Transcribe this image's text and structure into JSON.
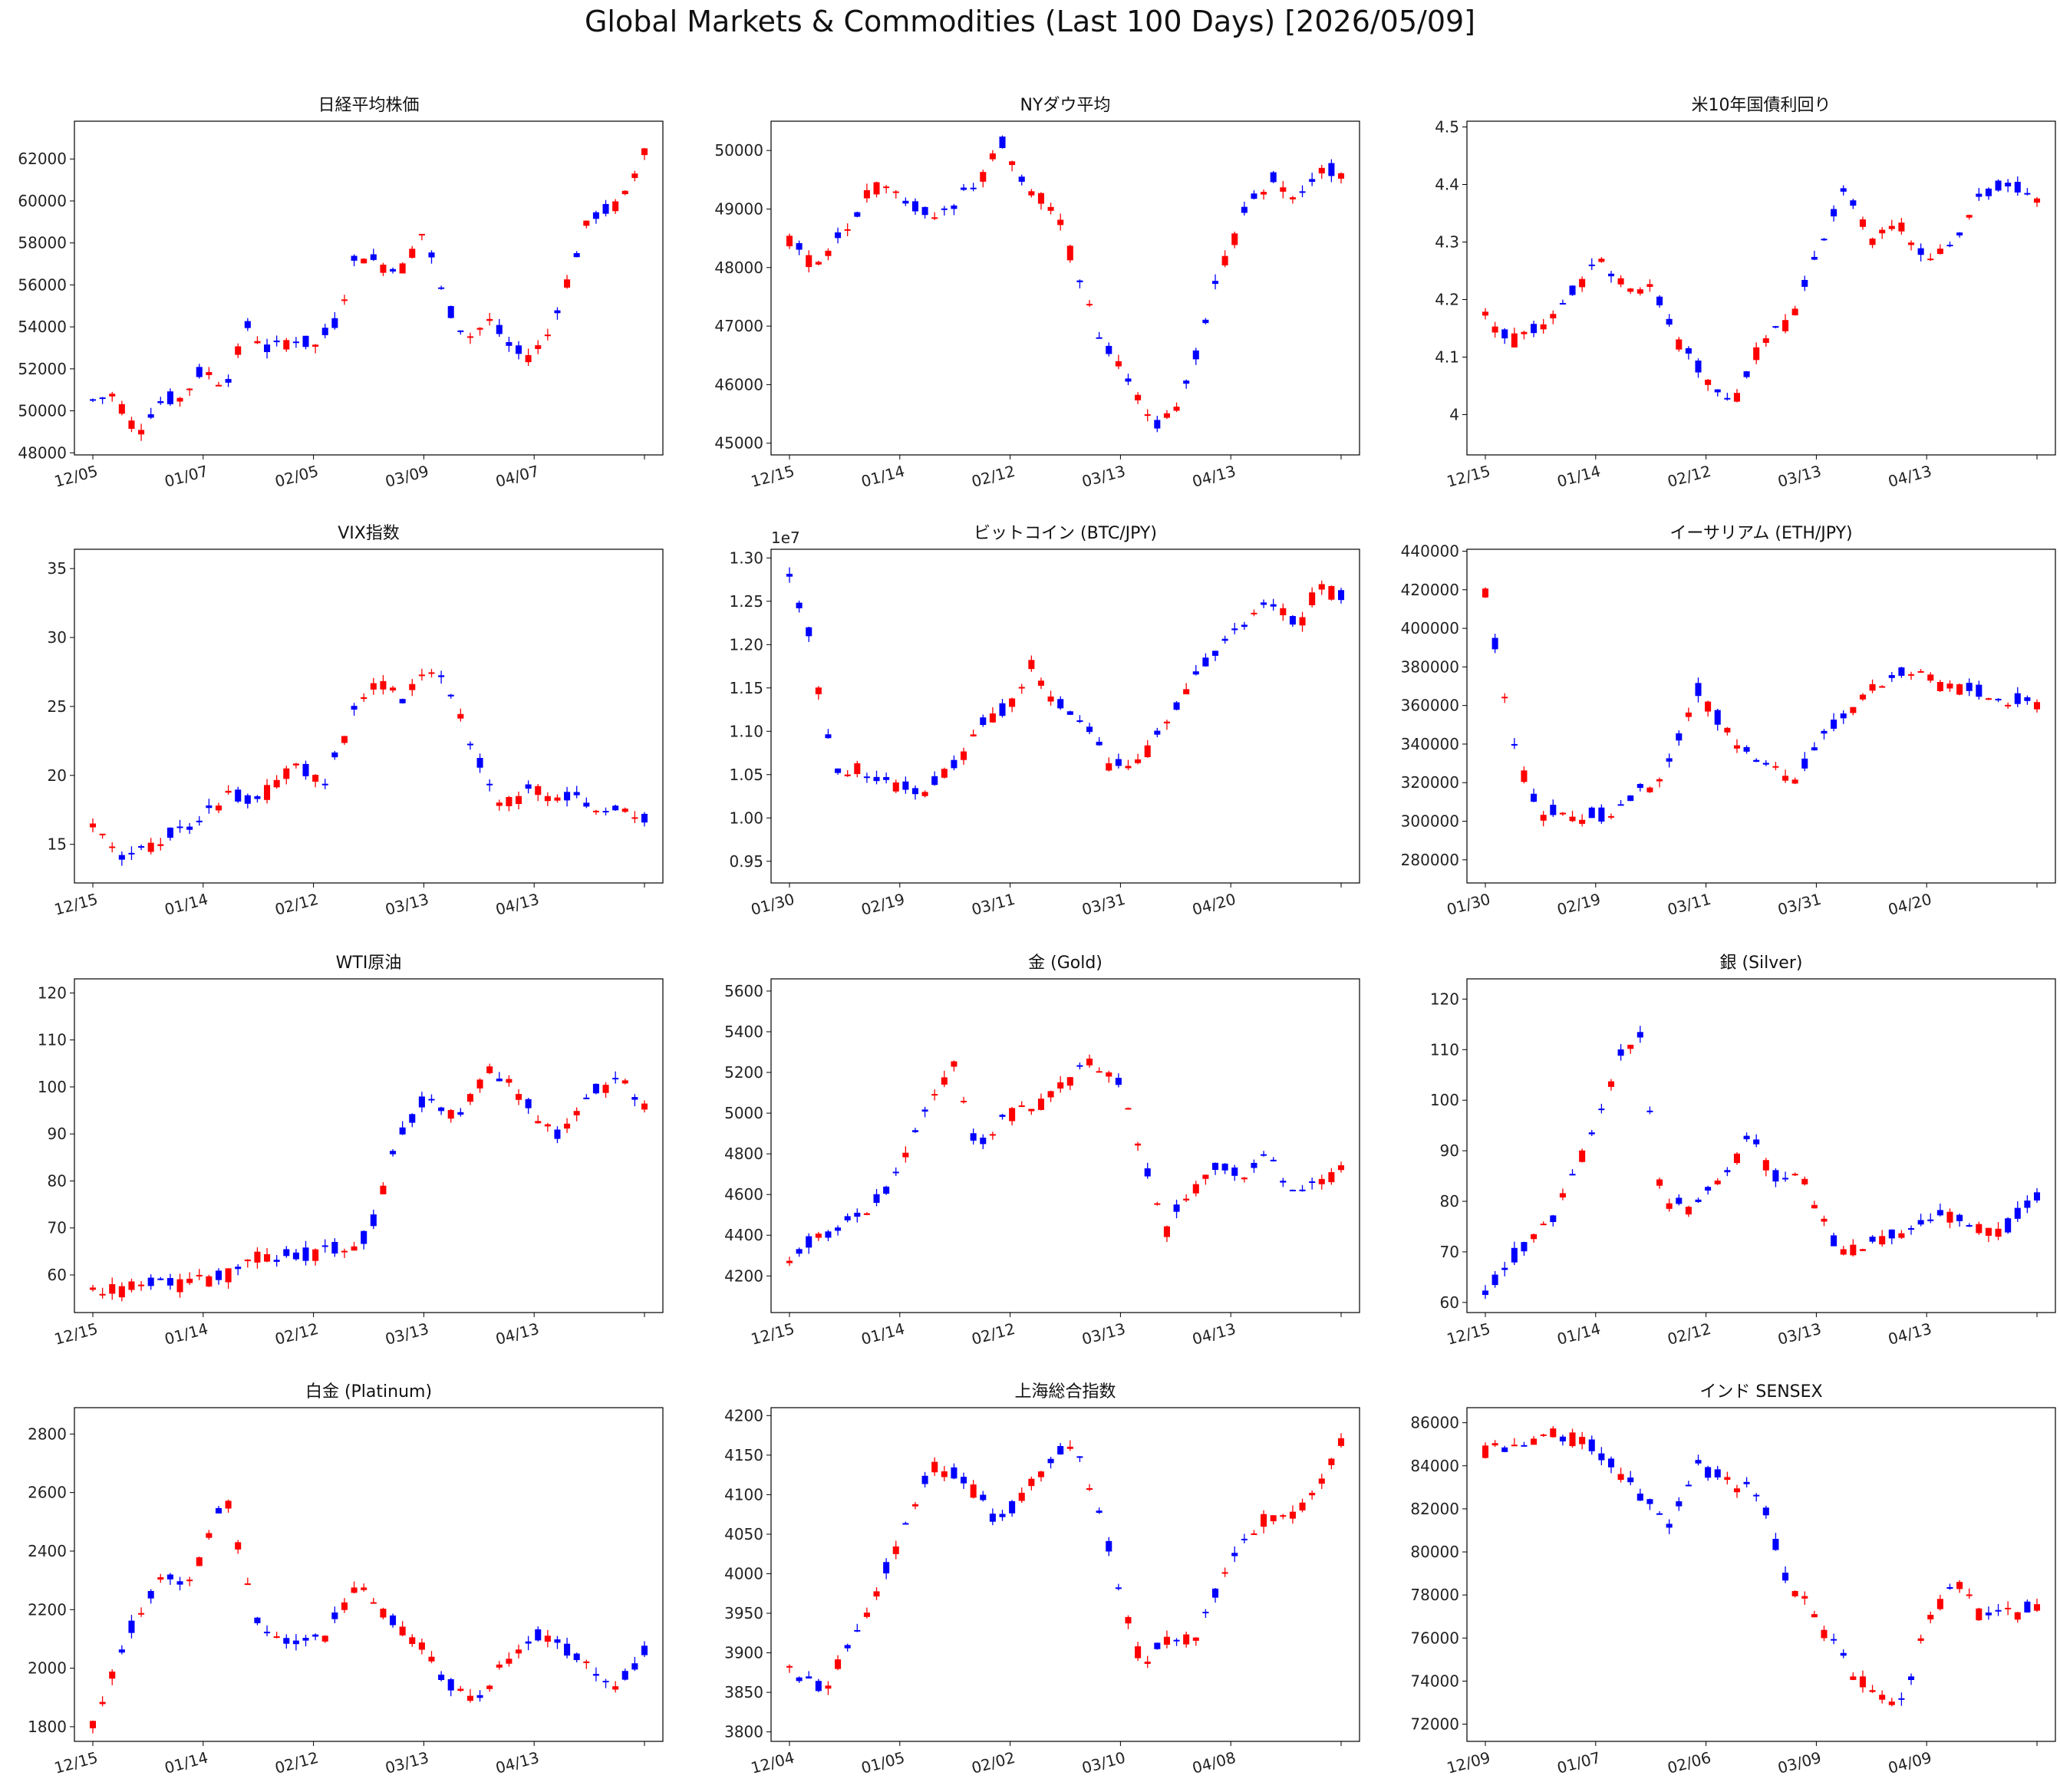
{
  "suptitle": "Global Markets & Commodities (Last 100 Days) [2026/05/09]",
  "colors": {
    "up": "#0000ff",
    "down": "#ff0000",
    "axis": "#000000"
  },
  "chart_data": [
    {
      "type": "candlestick",
      "title": "日経平均株価",
      "xticks": [
        "12/05",
        "01/07",
        "02/05",
        "03/09",
        "04/07",
        ""
      ],
      "yticks": [
        48000,
        50000,
        52000,
        54000,
        56000,
        58000,
        60000,
        62000
      ],
      "ylim": [
        47900,
        63800
      ],
      "shape": [
        [
          0,
          50500
        ],
        [
          0.04,
          50800
        ],
        [
          0.08,
          49000
        ],
        [
          0.12,
          50400
        ],
        [
          0.16,
          50600
        ],
        [
          0.2,
          52000
        ],
        [
          0.24,
          51200
        ],
        [
          0.28,
          54000
        ],
        [
          0.32,
          52800
        ],
        [
          0.36,
          53500
        ],
        [
          0.4,
          53000
        ],
        [
          0.44,
          54200
        ],
        [
          0.48,
          57600
        ],
        [
          0.52,
          57000
        ],
        [
          0.56,
          56800
        ],
        [
          0.6,
          58600
        ],
        [
          0.64,
          55000
        ],
        [
          0.68,
          53500
        ],
        [
          0.72,
          54300
        ],
        [
          0.75,
          53200
        ],
        [
          0.78,
          52500
        ],
        [
          0.82,
          53300
        ],
        [
          0.86,
          56200
        ],
        [
          0.9,
          59200
        ],
        [
          0.94,
          59600
        ],
        [
          0.97,
          60400
        ],
        [
          1,
          62600
        ]
      ]
    },
    {
      "type": "candlestick",
      "title": "NYダウ平均",
      "xticks": [
        "12/15",
        "01/14",
        "02/12",
        "03/13",
        "04/13",
        ""
      ],
      "yticks": [
        45000,
        46000,
        47000,
        48000,
        49000,
        50000
      ],
      "ylim": [
        44800,
        50500
      ],
      "shape": [
        [
          0,
          48500
        ],
        [
          0.05,
          48000
        ],
        [
          0.1,
          48600
        ],
        [
          0.15,
          49400
        ],
        [
          0.2,
          49200
        ],
        [
          0.25,
          48900
        ],
        [
          0.3,
          49100
        ],
        [
          0.35,
          49600
        ],
        [
          0.38,
          50200
        ],
        [
          0.42,
          49500
        ],
        [
          0.48,
          49000
        ],
        [
          0.52,
          48000
        ],
        [
          0.56,
          46800
        ],
        [
          0.62,
          46000
        ],
        [
          0.66,
          45300
        ],
        [
          0.7,
          45600
        ],
        [
          0.74,
          46600
        ],
        [
          0.78,
          48000
        ],
        [
          0.83,
          49000
        ],
        [
          0.88,
          49500
        ],
        [
          0.92,
          49200
        ],
        [
          0.96,
          49700
        ],
        [
          1,
          49600
        ]
      ]
    },
    {
      "type": "candlestick",
      "title": "米10年国債利回り",
      "xticks": [
        "12/15",
        "01/14",
        "02/12",
        "03/13",
        "04/13",
        ""
      ],
      "yticks": [
        4.0,
        4.1,
        4.2,
        4.3,
        4.4,
        4.5
      ],
      "ylim": [
        3.93,
        4.51
      ],
      "shape": [
        [
          0,
          4.17
        ],
        [
          0.05,
          4.13
        ],
        [
          0.1,
          4.15
        ],
        [
          0.15,
          4.2
        ],
        [
          0.2,
          4.27
        ],
        [
          0.25,
          4.23
        ],
        [
          0.3,
          4.22
        ],
        [
          0.35,
          4.13
        ],
        [
          0.4,
          4.06
        ],
        [
          0.45,
          4.02
        ],
        [
          0.5,
          4.13
        ],
        [
          0.55,
          4.16
        ],
        [
          0.6,
          4.28
        ],
        [
          0.65,
          4.38
        ],
        [
          0.7,
          4.31
        ],
        [
          0.75,
          4.33
        ],
        [
          0.8,
          4.26
        ],
        [
          0.85,
          4.3
        ],
        [
          0.9,
          4.38
        ],
        [
          0.95,
          4.4
        ],
        [
          1,
          4.37
        ]
      ]
    },
    {
      "type": "candlestick",
      "title": "VIX指数",
      "xticks": [
        "12/15",
        "01/14",
        "02/12",
        "03/13",
        "04/13",
        ""
      ],
      "yticks": [
        15,
        20,
        25,
        30,
        35
      ],
      "ylim": [
        12.2,
        36.4
      ],
      "shape": [
        [
          0,
          16.8
        ],
        [
          0.06,
          13.8
        ],
        [
          0.12,
          15.2
        ],
        [
          0.18,
          16.5
        ],
        [
          0.24,
          18.5
        ],
        [
          0.3,
          18.2
        ],
        [
          0.36,
          20.8
        ],
        [
          0.42,
          19.5
        ],
        [
          0.48,
          25
        ],
        [
          0.52,
          27
        ],
        [
          0.56,
          25.5
        ],
        [
          0.62,
          28
        ],
        [
          0.66,
          25
        ],
        [
          0.7,
          21
        ],
        [
          0.74,
          18
        ],
        [
          0.8,
          19
        ],
        [
          0.86,
          18.5
        ],
        [
          0.92,
          17.5
        ],
        [
          1,
          17
        ]
      ]
    },
    {
      "type": "candlestick",
      "title": "ビットコイン (BTC/JPY)",
      "yoffset": "1e7",
      "xticks": [
        "01/30",
        "02/19",
        "03/11",
        "03/31",
        "04/20",
        ""
      ],
      "yticks": [
        "0.95",
        "1.00",
        "1.05",
        "1.10",
        "1.15",
        "1.20",
        "1.25",
        "1.30"
      ],
      "ylim": [
        0.925,
        1.31
      ],
      "shape": [
        [
          0,
          1.28
        ],
        [
          0.04,
          1.2
        ],
        [
          0.08,
          1.05
        ],
        [
          0.12,
          1.06
        ],
        [
          0.18,
          1.04
        ],
        [
          0.24,
          1.03
        ],
        [
          0.3,
          1.06
        ],
        [
          0.34,
          1.1
        ],
        [
          0.4,
          1.13
        ],
        [
          0.44,
          1.18
        ],
        [
          0.48,
          1.13
        ],
        [
          0.52,
          1.12
        ],
        [
          0.58,
          1.06
        ],
        [
          0.64,
          1.07
        ],
        [
          0.7,
          1.13
        ],
        [
          0.76,
          1.18
        ],
        [
          0.82,
          1.22
        ],
        [
          0.88,
          1.25
        ],
        [
          0.92,
          1.22
        ],
        [
          0.96,
          1.27
        ],
        [
          1,
          1.255
        ]
      ]
    },
    {
      "type": "candlestick",
      "title": "イーサリアム (ETH/JPY)",
      "xticks": [
        "01/30",
        "02/19",
        "03/11",
        "03/31",
        "04/20",
        ""
      ],
      "yticks": [
        280000,
        300000,
        320000,
        340000,
        360000,
        380000,
        400000,
        420000,
        440000
      ],
      "ylim": [
        268000,
        441000
      ],
      "shape": [
        [
          0,
          420000
        ],
        [
          0.03,
          370000
        ],
        [
          0.06,
          330000
        ],
        [
          0.1,
          305000
        ],
        [
          0.16,
          302000
        ],
        [
          0.22,
          303000
        ],
        [
          0.28,
          315000
        ],
        [
          0.34,
          330000
        ],
        [
          0.38,
          370000
        ],
        [
          0.44,
          345000
        ],
        [
          0.5,
          330000
        ],
        [
          0.56,
          320000
        ],
        [
          0.62,
          345000
        ],
        [
          0.68,
          365000
        ],
        [
          0.72,
          372000
        ],
        [
          0.76,
          378000
        ],
        [
          0.82,
          372000
        ],
        [
          0.88,
          368000
        ],
        [
          0.94,
          362000
        ],
        [
          1,
          362000
        ]
      ]
    },
    {
      "type": "candlestick",
      "title": "WTI原油",
      "xticks": [
        "12/15",
        "01/14",
        "02/12",
        "03/13",
        "04/13",
        ""
      ],
      "yticks": [
        60,
        70,
        80,
        90,
        100,
        110,
        120
      ],
      "ylim": [
        52,
        123
      ],
      "shape": [
        [
          0,
          56.5
        ],
        [
          0.08,
          57.5
        ],
        [
          0.16,
          58
        ],
        [
          0.24,
          60
        ],
        [
          0.3,
          64
        ],
        [
          0.36,
          63.5
        ],
        [
          0.44,
          65.5
        ],
        [
          0.5,
          68
        ],
        [
          0.55,
          88
        ],
        [
          0.6,
          97
        ],
        [
          0.66,
          94
        ],
        [
          0.72,
          104
        ],
        [
          0.78,
          98
        ],
        [
          0.84,
          89
        ],
        [
          0.9,
          98
        ],
        [
          0.95,
          102
        ],
        [
          1,
          96
        ]
      ]
    },
    {
      "type": "candlestick",
      "title": "金 (Gold)",
      "xticks": [
        "12/15",
        "01/14",
        "02/12",
        "03/13",
        "04/13",
        ""
      ],
      "yticks": [
        4200,
        4400,
        4600,
        4800,
        5000,
        5200,
        5400,
        5600
      ],
      "ylim": [
        4020,
        5660
      ],
      "shape": [
        [
          0,
          4300
        ],
        [
          0.06,
          4400
        ],
        [
          0.12,
          4480
        ],
        [
          0.18,
          4620
        ],
        [
          0.24,
          5000
        ],
        [
          0.3,
          5250
        ],
        [
          0.34,
          4800
        ],
        [
          0.4,
          5000
        ],
        [
          0.46,
          5050
        ],
        [
          0.5,
          5150
        ],
        [
          0.54,
          5280
        ],
        [
          0.6,
          5120
        ],
        [
          0.64,
          4800
        ],
        [
          0.68,
          4400
        ],
        [
          0.72,
          4600
        ],
        [
          0.78,
          4750
        ],
        [
          0.82,
          4700
        ],
        [
          0.86,
          4800
        ],
        [
          0.92,
          4600
        ],
        [
          1,
          4720
        ]
      ]
    },
    {
      "type": "candlestick",
      "title": "銀 (Silver)",
      "xticks": [
        "12/15",
        "01/14",
        "02/12",
        "03/13",
        "04/13",
        ""
      ],
      "yticks": [
        60,
        70,
        80,
        90,
        100,
        110,
        120
      ],
      "ylim": [
        58,
        124
      ],
      "shape": [
        [
          0,
          62
        ],
        [
          0.06,
          70
        ],
        [
          0.12,
          76
        ],
        [
          0.18,
          90
        ],
        [
          0.24,
          108
        ],
        [
          0.28,
          113
        ],
        [
          0.32,
          80
        ],
        [
          0.38,
          78
        ],
        [
          0.44,
          86
        ],
        [
          0.48,
          93
        ],
        [
          0.52,
          85
        ],
        [
          0.58,
          84
        ],
        [
          0.64,
          70
        ],
        [
          0.7,
          72
        ],
        [
          0.76,
          74
        ],
        [
          0.82,
          78
        ],
        [
          0.88,
          76
        ],
        [
          0.94,
          74
        ],
        [
          1,
          81
        ]
      ]
    },
    {
      "type": "candlestick",
      "title": "白金 (Platinum)",
      "xticks": [
        "12/15",
        "01/14",
        "02/12",
        "03/13",
        "04/13",
        ""
      ],
      "yticks": [
        1800,
        2000,
        2200,
        2400,
        2600,
        2800
      ],
      "ylim": [
        1750,
        2890
      ],
      "shape": [
        [
          0,
          1820
        ],
        [
          0.06,
          2100
        ],
        [
          0.12,
          2300
        ],
        [
          0.18,
          2300
        ],
        [
          0.24,
          2600
        ],
        [
          0.3,
          2150
        ],
        [
          0.36,
          2060
        ],
        [
          0.42,
          2100
        ],
        [
          0.48,
          2300
        ],
        [
          0.54,
          2160
        ],
        [
          0.6,
          2080
        ],
        [
          0.64,
          1950
        ],
        [
          0.7,
          1900
        ],
        [
          0.76,
          2060
        ],
        [
          0.82,
          2120
        ],
        [
          0.88,
          2030
        ],
        [
          0.94,
          1930
        ],
        [
          1,
          2050
        ]
      ]
    },
    {
      "type": "candlestick",
      "title": "上海総合指数",
      "xticks": [
        "12/04",
        "01/05",
        "02/02",
        "03/10",
        "04/08",
        ""
      ],
      "yticks": [
        3800,
        3850,
        3900,
        3950,
        4000,
        4050,
        4100,
        4150,
        4200
      ],
      "ylim": [
        3788,
        4210
      ],
      "shape": [
        [
          0,
          3880
        ],
        [
          0.06,
          3850
        ],
        [
          0.1,
          3900
        ],
        [
          0.16,
          3980
        ],
        [
          0.22,
          4080
        ],
        [
          0.26,
          4140
        ],
        [
          0.32,
          4120
        ],
        [
          0.38,
          4060
        ],
        [
          0.42,
          4100
        ],
        [
          0.48,
          4150
        ],
        [
          0.52,
          4160
        ],
        [
          0.56,
          4080
        ],
        [
          0.6,
          3980
        ],
        [
          0.64,
          3880
        ],
        [
          0.68,
          3920
        ],
        [
          0.74,
          3920
        ],
        [
          0.8,
          4020
        ],
        [
          0.86,
          4070
        ],
        [
          0.92,
          4080
        ],
        [
          0.96,
          4110
        ],
        [
          1,
          4170
        ]
      ]
    },
    {
      "type": "candlestick",
      "title": "インド SENSEX",
      "xticks": [
        "12/09",
        "01/07",
        "02/06",
        "03/09",
        "04/09",
        ""
      ],
      "yticks": [
        72000,
        74000,
        76000,
        78000,
        80000,
        82000,
        84000,
        86000
      ],
      "ylim": [
        71200,
        86700
      ],
      "shape": [
        [
          0,
          84700
        ],
        [
          0.06,
          85000
        ],
        [
          0.12,
          85500
        ],
        [
          0.18,
          85200
        ],
        [
          0.24,
          83800
        ],
        [
          0.3,
          82000
        ],
        [
          0.34,
          81200
        ],
        [
          0.38,
          84000
        ],
        [
          0.44,
          83200
        ],
        [
          0.5,
          82700
        ],
        [
          0.54,
          79000
        ],
        [
          0.6,
          77000
        ],
        [
          0.66,
          74500
        ],
        [
          0.72,
          73500
        ],
        [
          0.76,
          73000
        ],
        [
          0.8,
          77000
        ],
        [
          0.86,
          78500
        ],
        [
          0.9,
          77000
        ],
        [
          1,
          77400
        ]
      ]
    }
  ]
}
